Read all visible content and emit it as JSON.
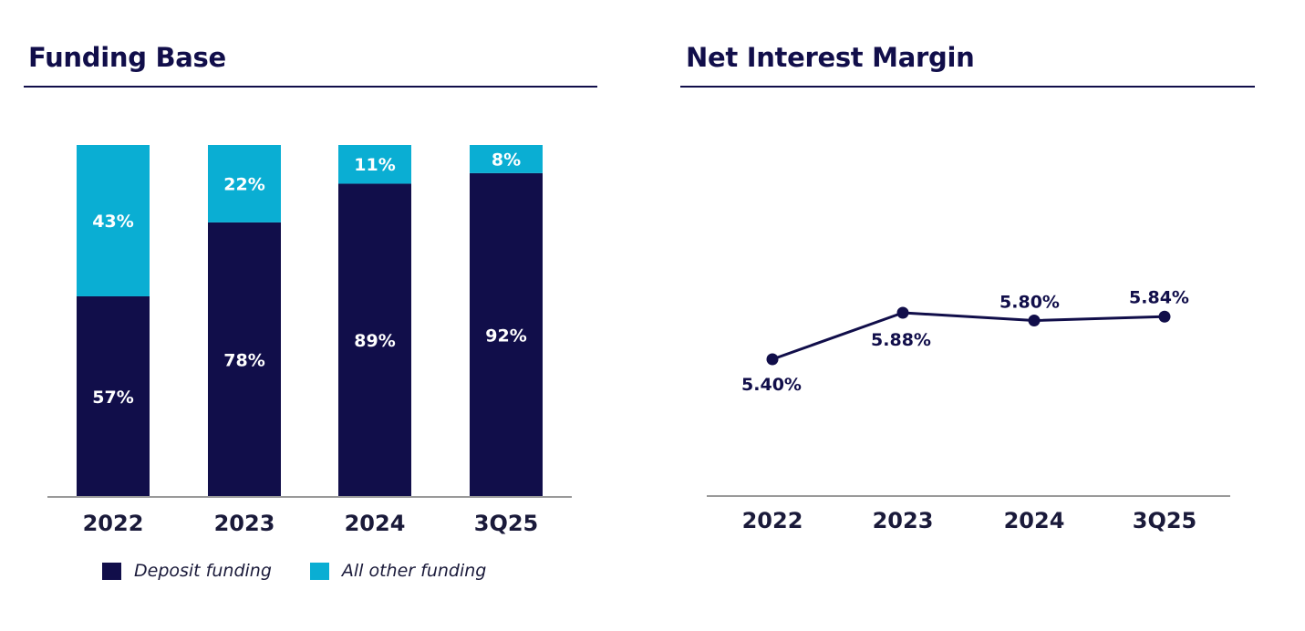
{
  "colors": {
    "deposit": "#110e4a",
    "other": "#0aaed3",
    "text": "#110e4a",
    "axis": "#9a9a9a"
  },
  "titles": {
    "funding": "Funding Base",
    "nim": "Net Interest Margin"
  },
  "legend": {
    "deposit": "Deposit funding",
    "other": "All other funding"
  },
  "chart_data": [
    {
      "type": "bar",
      "stacked": true,
      "title": "Funding Base",
      "categories": [
        "2022",
        "2023",
        "2024",
        "3Q25"
      ],
      "series": [
        {
          "name": "Deposit funding",
          "values": [
            57,
            78,
            89,
            92
          ],
          "labels": [
            "57%",
            "78%",
            "89%",
            "92%"
          ]
        },
        {
          "name": "All other funding",
          "values": [
            43,
            22,
            11,
            8
          ],
          "labels": [
            "43%",
            "22%",
            "11%",
            "8%"
          ]
        }
      ],
      "ylim": [
        0,
        100
      ],
      "grid": false,
      "legend": "bottom"
    },
    {
      "type": "line",
      "title": "Net Interest Margin",
      "categories": [
        "2022",
        "2023",
        "2024",
        "3Q25"
      ],
      "series": [
        {
          "values": [
            5.4,
            5.88,
            5.8,
            5.84
          ],
          "labels": [
            "5.40%",
            "5.88%",
            "5.80%",
            "5.84%"
          ]
        }
      ],
      "grid": false
    }
  ]
}
